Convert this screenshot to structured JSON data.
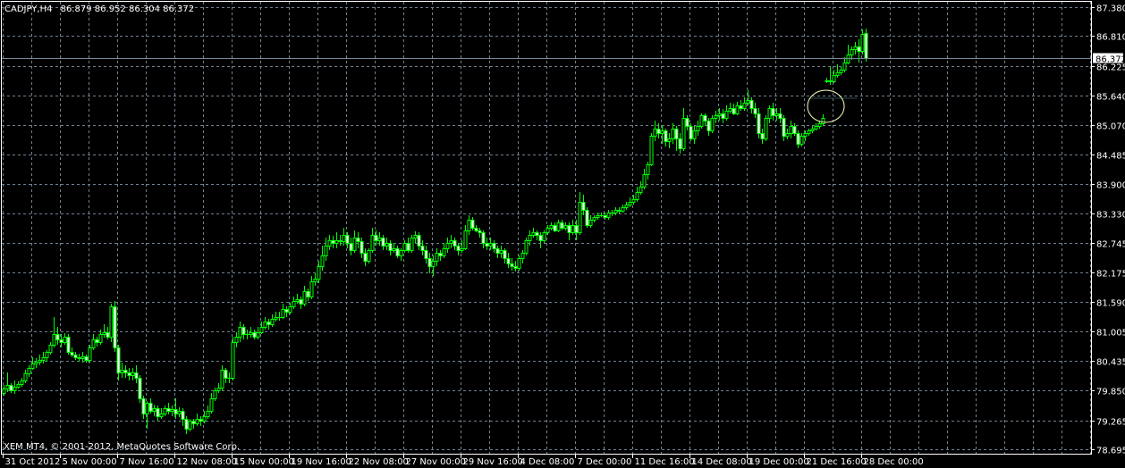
{
  "header": {
    "symbol_timeframe": "CADJPY,H4",
    "ohlc_readout": "86.879 86.952 86.304 86.372"
  },
  "footer": {
    "copyright": "XEM MT4, © 2001-2012, MetaQuotes Software Corp."
  },
  "colors": {
    "background": "#000000",
    "candle_outline": "#00ff00",
    "bull_body": "#000000",
    "bear_body": "#ffffff",
    "grid": "#708090",
    "bid_line": "#778899",
    "annotation_ellipse": "#ffffc0",
    "axis_text": "#ffffff"
  },
  "chart_data": {
    "type": "candlestick",
    "title": "",
    "bid_price": "86.372",
    "grid": true,
    "yticks": [
      "87.380",
      "86.810",
      "86.225",
      "85.640",
      "85.070",
      "84.485",
      "83.900",
      "83.330",
      "82.745",
      "82.175",
      "81.590",
      "81.005",
      "80.435",
      "79.850",
      "79.265",
      "78.695"
    ],
    "ylim": [
      78.695,
      87.38
    ],
    "xticks": [
      "31 Oct 2012",
      "5 Nov 00:00",
      "7 Nov 16:00",
      "12 Nov 08:00",
      "15 Nov 00:00",
      "19 Nov 16:00",
      "22 Nov 08:00",
      "27 Nov 00:00",
      "29 Nov 16:00",
      "4 Dec 08:00",
      "7 Dec 00:00",
      "11 Dec 16:00",
      "14 Dec 08:00",
      "19 Dec 00:00",
      "21 Dec 16:00",
      "28 Dec 00:00"
    ],
    "bars_per_xtick": 16,
    "annotation": "ellipse around price gap near 21 Dec 16:00",
    "open": [
      79.8,
      79.88,
      79.95,
      79.86,
      79.93,
      79.98,
      80.05,
      80.18,
      80.3,
      80.38,
      80.42,
      80.45,
      80.5,
      80.6,
      80.75,
      80.95,
      80.85,
      80.8,
      80.9,
      80.6,
      80.55,
      80.5,
      80.48,
      80.52,
      80.45,
      80.7,
      80.85,
      80.8,
      80.95,
      81.0,
      80.9,
      81.5,
      80.7,
      80.2,
      80.25,
      80.2,
      80.15,
      80.2,
      80.1,
      79.7,
      79.4,
      79.6,
      79.45,
      79.5,
      79.35,
      79.4,
      79.5,
      79.45,
      79.48,
      79.4,
      79.45,
      79.3,
      79.1,
      79.25,
      79.2,
      79.3,
      79.25,
      79.35,
      79.45,
      79.7,
      79.85,
      79.9,
      80.25,
      80.1,
      80.1,
      80.8,
      80.9,
      81.1,
      80.95,
      80.95,
      81.0,
      80.9,
      81.0,
      81.1,
      81.2,
      81.15,
      81.25,
      81.3,
      81.3,
      81.45,
      81.4,
      81.5,
      81.6,
      81.65,
      81.55,
      81.8,
      81.7,
      82.0,
      82.05,
      82.3,
      82.5,
      82.7,
      82.8,
      82.75,
      82.8,
      82.78,
      82.9,
      82.75,
      82.6,
      82.85,
      82.78,
      82.55,
      82.4,
      82.6,
      82.9,
      82.8,
      82.85,
      82.7,
      82.75,
      82.6,
      82.65,
      82.5,
      82.6,
      82.75,
      82.6,
      82.85,
      82.9,
      82.7,
      82.6,
      82.45,
      82.3,
      82.4,
      82.55,
      82.5,
      82.65,
      82.75,
      82.8,
      82.7,
      82.6,
      82.65,
      83.0,
      83.2,
      83.05,
      83.0,
      82.95,
      82.75,
      82.7,
      82.75,
      82.65,
      82.55,
      82.6,
      82.45,
      82.35,
      82.3,
      82.25,
      82.45,
      82.55,
      82.8,
      82.9,
      82.95,
      82.9,
      82.8,
      82.95,
      83.05,
      83.1,
      83.0,
      83.15,
      83.05,
      83.1,
      82.95,
      83.1,
      82.95,
      83.55,
      83.4,
      83.1,
      83.2,
      83.25,
      83.3,
      83.3,
      83.25,
      83.35,
      83.35,
      83.4,
      83.38,
      83.45,
      83.5,
      83.55,
      83.6,
      83.75,
      83.85,
      84.1,
      84.3,
      84.85,
      85.0,
      84.9,
      84.95,
      84.75,
      84.8,
      85.0,
      84.8,
      84.6,
      85.2,
      85.05,
      84.8,
      84.95,
      85.05,
      85.25,
      85.15,
      84.95,
      85.2,
      85.25,
      85.3,
      85.2,
      85.35,
      85.4,
      85.3,
      85.45,
      85.4,
      85.5,
      85.55,
      85.4,
      85.3,
      84.9,
      84.8,
      85.2,
      85.4,
      85.25,
      85.3,
      85.2,
      84.85,
      84.9,
      85.05,
      84.9,
      84.7,
      84.85,
      84.9,
      84.95,
      85.0,
      85.05,
      85.1,
      85.92,
      85.95,
      85.92,
      86.05,
      86.1,
      86.15,
      86.3,
      86.45,
      86.55,
      86.6,
      86.52,
      86.879
    ],
    "high": [
      79.95,
      80.2,
      80.0,
      80.05,
      80.02,
      80.1,
      80.25,
      80.35,
      80.5,
      80.48,
      80.55,
      80.6,
      80.65,
      80.8,
      81.3,
      81.1,
      80.95,
      80.98,
      80.95,
      80.7,
      80.6,
      80.58,
      80.6,
      80.55,
      80.75,
      80.95,
      80.9,
      81.05,
      81.15,
      81.1,
      81.55,
      81.6,
      80.75,
      80.4,
      80.35,
      80.3,
      80.3,
      80.35,
      80.15,
      79.75,
      79.65,
      79.7,
      79.58,
      79.55,
      79.5,
      79.55,
      79.6,
      79.55,
      79.7,
      79.52,
      79.5,
      79.35,
      79.3,
      79.3,
      79.4,
      79.35,
      79.45,
      79.55,
      79.8,
      79.9,
      80.0,
      80.35,
      80.3,
      80.2,
      80.9,
      81.0,
      81.2,
      81.15,
      81.05,
      81.1,
      81.05,
      81.1,
      81.2,
      81.3,
      81.25,
      81.35,
      81.4,
      81.4,
      81.55,
      81.5,
      81.58,
      81.7,
      81.75,
      81.7,
      81.9,
      81.85,
      82.1,
      82.15,
      82.4,
      82.7,
      82.85,
      82.9,
      82.88,
      82.95,
      82.9,
      83.05,
      82.95,
      82.85,
      83.0,
      82.95,
      82.85,
      82.65,
      82.65,
      83.05,
      83.0,
      82.95,
      82.9,
      82.85,
      82.8,
      82.75,
      82.7,
      82.65,
      82.8,
      82.85,
      82.9,
      82.98,
      82.95,
      82.8,
      82.7,
      82.55,
      82.5,
      82.65,
      82.6,
      82.75,
      82.85,
      82.9,
      82.85,
      82.75,
      82.8,
      83.1,
      83.3,
      83.25,
      83.1,
      83.05,
      83.0,
      82.85,
      82.85,
      82.8,
      82.7,
      82.7,
      82.65,
      82.55,
      82.45,
      82.4,
      82.5,
      82.6,
      82.85,
      83.0,
      83.05,
      83.0,
      82.95,
      83.0,
      83.1,
      83.15,
      83.15,
      83.2,
      83.2,
      83.15,
      83.15,
      83.2,
      83.2,
      83.75,
      83.7,
      83.45,
      83.3,
      83.3,
      83.35,
      83.35,
      83.35,
      83.4,
      83.4,
      83.45,
      83.45,
      83.5,
      83.55,
      83.65,
      83.7,
      83.85,
      83.95,
      84.2,
      84.35,
      84.9,
      85.15,
      85.1,
      85.05,
      85.0,
      84.9,
      85.1,
      85.05,
      84.9,
      85.4,
      85.25,
      85.1,
      85.05,
      85.15,
      85.3,
      85.3,
      85.2,
      85.25,
      85.35,
      85.4,
      85.38,
      85.45,
      85.5,
      85.48,
      85.52,
      85.55,
      85.6,
      85.75,
      85.6,
      85.5,
      85.4,
      85.0,
      85.25,
      85.45,
      85.5,
      85.4,
      85.4,
      85.25,
      85.0,
      85.15,
      85.1,
      84.95,
      84.9,
      84.95,
      85.0,
      85.05,
      85.1,
      85.15,
      85.28,
      86.0,
      86.2,
      86.15,
      86.25,
      86.2,
      86.4,
      86.65,
      86.6,
      86.7,
      86.75,
      86.95,
      86.952
    ],
    "low": [
      79.75,
      79.82,
      79.8,
      79.78,
      79.88,
      79.92,
      80.0,
      80.12,
      80.25,
      80.3,
      80.35,
      80.38,
      80.42,
      80.55,
      80.7,
      80.75,
      80.7,
      80.75,
      80.55,
      80.5,
      80.45,
      80.42,
      80.4,
      80.4,
      80.4,
      80.65,
      80.72,
      80.75,
      80.88,
      80.85,
      80.8,
      80.6,
      80.05,
      80.1,
      80.1,
      80.05,
      80.05,
      80.0,
      79.6,
      79.3,
      79.1,
      79.4,
      79.35,
      79.25,
      79.3,
      79.35,
      79.38,
      79.35,
      79.3,
      79.32,
      79.15,
      79.0,
      79.05,
      79.1,
      79.15,
      79.15,
      79.2,
      79.3,
      79.4,
      79.65,
      79.8,
      79.85,
      80.0,
      80.0,
      80.05,
      80.7,
      80.8,
      80.85,
      80.85,
      80.88,
      80.85,
      80.85,
      80.95,
      81.05,
      81.05,
      81.1,
      81.2,
      81.22,
      81.25,
      81.3,
      81.35,
      81.45,
      81.55,
      81.45,
      81.5,
      81.6,
      81.65,
      81.9,
      81.95,
      82.2,
      82.4,
      82.6,
      82.65,
      82.65,
      82.7,
      82.7,
      82.65,
      82.5,
      82.55,
      82.65,
      82.45,
      82.3,
      82.35,
      82.55,
      82.7,
      82.7,
      82.6,
      82.6,
      82.5,
      82.55,
      82.45,
      82.4,
      82.55,
      82.55,
      82.55,
      82.75,
      82.6,
      82.5,
      82.35,
      82.15,
      82.1,
      82.3,
      82.4,
      82.45,
      82.55,
      82.65,
      82.6,
      82.5,
      82.55,
      82.6,
      82.9,
      83.0,
      82.95,
      82.85,
      82.65,
      82.6,
      82.6,
      82.55,
      82.45,
      82.45,
      82.35,
      82.25,
      82.2,
      82.18,
      82.2,
      82.35,
      82.5,
      82.7,
      82.85,
      82.8,
      82.65,
      82.75,
      82.9,
      83.0,
      82.95,
      82.95,
      83.0,
      83.0,
      82.8,
      82.9,
      82.8,
      82.9,
      83.3,
      83.05,
      83.05,
      83.15,
      83.2,
      83.25,
      83.2,
      83.2,
      83.28,
      83.3,
      83.32,
      83.35,
      83.4,
      83.45,
      83.5,
      83.55,
      83.7,
      83.8,
      84.0,
      84.25,
      84.75,
      84.8,
      84.7,
      84.65,
      84.6,
      84.7,
      84.55,
      84.5,
      84.55,
      84.95,
      84.75,
      84.7,
      84.85,
      85.0,
      85.05,
      84.85,
      84.9,
      85.1,
      85.15,
      85.1,
      85.15,
      85.3,
      85.25,
      85.25,
      85.35,
      85.35,
      85.45,
      85.3,
      85.2,
      84.8,
      84.7,
      84.75,
      85.1,
      85.15,
      85.15,
      85.1,
      84.75,
      84.78,
      84.8,
      84.85,
      84.6,
      84.65,
      84.75,
      84.85,
      84.9,
      84.95,
      85.0,
      85.05,
      85.88,
      85.85,
      85.88,
      86.0,
      86.05,
      86.1,
      86.25,
      86.35,
      86.45,
      86.3,
      86.45,
      86.304
    ],
    "close": [
      79.88,
      79.95,
      79.86,
      79.93,
      79.98,
      80.05,
      80.18,
      80.3,
      80.38,
      80.42,
      80.45,
      80.5,
      80.6,
      80.75,
      80.95,
      80.85,
      80.8,
      80.9,
      80.6,
      80.55,
      80.5,
      80.48,
      80.52,
      80.45,
      80.7,
      80.85,
      80.8,
      80.95,
      81.0,
      80.9,
      81.5,
      80.7,
      80.2,
      80.25,
      80.2,
      80.15,
      80.2,
      80.1,
      79.7,
      79.4,
      79.6,
      79.45,
      79.5,
      79.35,
      79.4,
      79.5,
      79.45,
      79.48,
      79.4,
      79.45,
      79.3,
      79.1,
      79.25,
      79.2,
      79.3,
      79.25,
      79.35,
      79.45,
      79.7,
      79.85,
      79.9,
      80.25,
      80.1,
      80.1,
      80.8,
      80.9,
      81.1,
      80.95,
      80.95,
      81.0,
      80.9,
      81.0,
      81.1,
      81.2,
      81.15,
      81.25,
      81.3,
      81.3,
      81.45,
      81.4,
      81.5,
      81.6,
      81.65,
      81.55,
      81.8,
      81.7,
      82.0,
      82.05,
      82.3,
      82.5,
      82.7,
      82.8,
      82.75,
      82.8,
      82.78,
      82.9,
      82.75,
      82.6,
      82.85,
      82.78,
      82.55,
      82.4,
      82.6,
      82.9,
      82.8,
      82.85,
      82.7,
      82.75,
      82.6,
      82.65,
      82.5,
      82.6,
      82.75,
      82.6,
      82.85,
      82.9,
      82.7,
      82.6,
      82.45,
      82.3,
      82.4,
      82.55,
      82.5,
      82.65,
      82.75,
      82.8,
      82.7,
      82.6,
      82.65,
      83.0,
      83.2,
      83.05,
      83.0,
      82.95,
      82.75,
      82.7,
      82.75,
      82.65,
      82.55,
      82.6,
      82.45,
      82.35,
      82.3,
      82.25,
      82.45,
      82.55,
      82.8,
      82.9,
      82.95,
      82.9,
      82.8,
      82.95,
      83.05,
      83.1,
      83.0,
      83.15,
      83.05,
      83.1,
      82.95,
      83.1,
      82.95,
      83.55,
      83.4,
      83.1,
      83.2,
      83.25,
      83.3,
      83.3,
      83.25,
      83.35,
      83.35,
      83.4,
      83.38,
      83.45,
      83.5,
      83.55,
      83.6,
      83.75,
      83.85,
      84.1,
      84.3,
      84.85,
      85.0,
      84.9,
      84.95,
      84.75,
      84.8,
      85.0,
      84.8,
      84.6,
      85.2,
      85.05,
      84.8,
      84.95,
      85.05,
      85.25,
      85.15,
      84.95,
      85.2,
      85.25,
      85.3,
      85.2,
      85.35,
      85.4,
      85.3,
      85.45,
      85.4,
      85.5,
      85.55,
      85.4,
      85.3,
      84.9,
      84.8,
      85.2,
      85.4,
      85.25,
      85.3,
      85.2,
      84.85,
      84.9,
      85.05,
      84.9,
      84.7,
      84.85,
      84.9,
      84.95,
      85.0,
      85.05,
      85.1,
      85.2,
      85.95,
      85.92,
      86.05,
      86.1,
      86.15,
      86.3,
      86.45,
      86.55,
      86.6,
      86.52,
      86.85,
      86.372
    ]
  }
}
